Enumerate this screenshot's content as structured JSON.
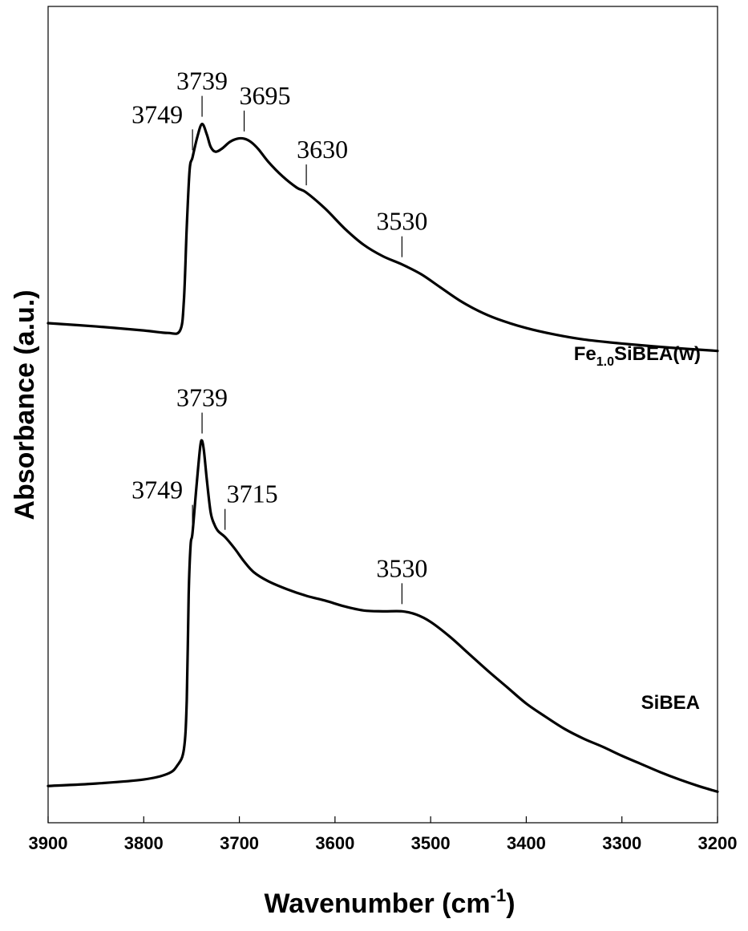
{
  "chart_data": {
    "type": "line",
    "xlabel": "Wavenumber (cm",
    "xlabel_sup": "-1",
    "xlabel_close": ")",
    "ylabel": "Absorbance (a.u.)",
    "xlim": [
      3900,
      3200
    ],
    "x_reversed": true,
    "ylim": [
      0,
      1
    ],
    "grid": false,
    "x_ticks": [
      3900,
      3800,
      3700,
      3600,
      3500,
      3400,
      3300,
      3200
    ],
    "x_tick_labels": [
      "3900",
      "3800",
      "3700",
      "3600",
      "3500",
      "3400",
      "3300",
      "3200"
    ],
    "series": [
      {
        "name": "Fe1.0SiBEA(w)",
        "label_main": "Fe",
        "label_sub": "1.0",
        "label_rest": "SiBEA(w)",
        "points": [
          [
            3900,
            0.612
          ],
          [
            3850,
            0.608
          ],
          [
            3800,
            0.603
          ],
          [
            3775,
            0.6
          ],
          [
            3762,
            0.603
          ],
          [
            3758,
            0.64
          ],
          [
            3755,
            0.73
          ],
          [
            3752,
            0.8
          ],
          [
            3749,
            0.815
          ],
          [
            3744,
            0.84
          ],
          [
            3739,
            0.856
          ],
          [
            3734,
            0.843
          ],
          [
            3730,
            0.828
          ],
          [
            3725,
            0.822
          ],
          [
            3718,
            0.826
          ],
          [
            3710,
            0.834
          ],
          [
            3702,
            0.838
          ],
          [
            3695,
            0.838
          ],
          [
            3688,
            0.834
          ],
          [
            3680,
            0.825
          ],
          [
            3670,
            0.81
          ],
          [
            3655,
            0.792
          ],
          [
            3640,
            0.778
          ],
          [
            3630,
            0.772
          ],
          [
            3610,
            0.752
          ],
          [
            3590,
            0.728
          ],
          [
            3570,
            0.708
          ],
          [
            3550,
            0.694
          ],
          [
            3530,
            0.684
          ],
          [
            3510,
            0.672
          ],
          [
            3490,
            0.656
          ],
          [
            3470,
            0.64
          ],
          [
            3450,
            0.627
          ],
          [
            3430,
            0.617
          ],
          [
            3400,
            0.606
          ],
          [
            3370,
            0.598
          ],
          [
            3340,
            0.592
          ],
          [
            3300,
            0.587
          ],
          [
            3250,
            0.582
          ],
          [
            3200,
            0.578
          ]
        ],
        "annotations": [
          {
            "label": "3749",
            "x": 3749
          },
          {
            "label": "3739",
            "x": 3739
          },
          {
            "label": "3695",
            "x": 3695
          },
          {
            "label": "3630",
            "x": 3630
          },
          {
            "label": "3530",
            "x": 3530
          }
        ]
      },
      {
        "name": "SiBEA",
        "label_main": "SiBEA",
        "label_sub": "",
        "label_rest": "",
        "points": [
          [
            3900,
            0.045
          ],
          [
            3850,
            0.048
          ],
          [
            3800,
            0.053
          ],
          [
            3775,
            0.06
          ],
          [
            3765,
            0.07
          ],
          [
            3758,
            0.09
          ],
          [
            3755,
            0.15
          ],
          [
            3753,
            0.28
          ],
          [
            3751,
            0.34
          ],
          [
            3749,
            0.355
          ],
          [
            3745,
            0.41
          ],
          [
            3741,
            0.46
          ],
          [
            3739,
            0.468
          ],
          [
            3737,
            0.455
          ],
          [
            3734,
            0.42
          ],
          [
            3730,
            0.38
          ],
          [
            3726,
            0.365
          ],
          [
            3722,
            0.357
          ],
          [
            3715,
            0.35
          ],
          [
            3705,
            0.336
          ],
          [
            3695,
            0.32
          ],
          [
            3685,
            0.307
          ],
          [
            3670,
            0.296
          ],
          [
            3650,
            0.286
          ],
          [
            3630,
            0.278
          ],
          [
            3610,
            0.272
          ],
          [
            3590,
            0.265
          ],
          [
            3570,
            0.26
          ],
          [
            3550,
            0.259
          ],
          [
            3530,
            0.259
          ],
          [
            3515,
            0.255
          ],
          [
            3500,
            0.246
          ],
          [
            3480,
            0.228
          ],
          [
            3460,
            0.207
          ],
          [
            3440,
            0.186
          ],
          [
            3420,
            0.166
          ],
          [
            3400,
            0.146
          ],
          [
            3380,
            0.13
          ],
          [
            3360,
            0.115
          ],
          [
            3340,
            0.103
          ],
          [
            3320,
            0.093
          ],
          [
            3300,
            0.082
          ],
          [
            3280,
            0.072
          ],
          [
            3260,
            0.062
          ],
          [
            3240,
            0.053
          ],
          [
            3220,
            0.045
          ],
          [
            3200,
            0.038
          ]
        ],
        "annotations": [
          {
            "label": "3749",
            "x": 3749
          },
          {
            "label": "3739",
            "x": 3739
          },
          {
            "label": "3715",
            "x": 3715
          },
          {
            "label": "3530",
            "x": 3530
          }
        ]
      }
    ]
  }
}
